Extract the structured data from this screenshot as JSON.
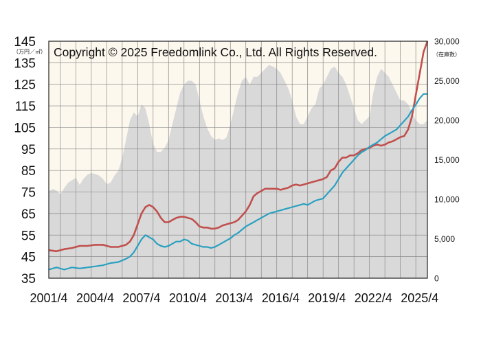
{
  "chart_data": {
    "type": "line",
    "copyright": "Copyright © 2025 Freedomlink Co., Ltd. All Rights Reserved.",
    "y_left_unit": "（万円／㎡）",
    "y_right_unit": "（在庫数）",
    "y_left_ticks": [
      "145",
      "135",
      "125",
      "115",
      "105",
      "95",
      "85",
      "75",
      "65",
      "55",
      "45",
      "35"
    ],
    "y_right_ticks": [
      "30,000",
      "25,000",
      "20,000",
      "15,000",
      "10,000",
      "5,000",
      "0"
    ],
    "x_ticks": [
      "2001/4",
      "2004/4",
      "2007/4",
      "2010/4",
      "2013/4",
      "2016/4",
      "2019/4",
      "2022/4",
      "2025/4"
    ],
    "ylim_left": [
      35,
      145
    ],
    "ylim_right": [
      0,
      30000
    ],
    "xlim": [
      2001.25,
      2025.75
    ],
    "grid": true,
    "colors": {
      "inventory": "#d9d9d9",
      "red_series": "#c0504d",
      "teal_series": "#2aa0c0",
      "plot_bg": "#fdf8ee"
    },
    "series": [
      {
        "key": "inventory",
        "axis": "right",
        "style": "area",
        "x": [
          2001.25,
          2001.5,
          2001.75,
          2002.0,
          2002.25,
          2002.5,
          2002.75,
          2003.0,
          2003.25,
          2003.5,
          2003.75,
          2004.0,
          2004.25,
          2004.5,
          2004.75,
          2005.0,
          2005.25,
          2005.5,
          2005.75,
          2006.0,
          2006.25,
          2006.5,
          2006.75,
          2007.0,
          2007.25,
          2007.5,
          2007.75,
          2008.0,
          2008.25,
          2008.5,
          2008.75,
          2009.0,
          2009.25,
          2009.5,
          2009.75,
          2010.0,
          2010.25,
          2010.5,
          2010.75,
          2011.0,
          2011.25,
          2011.5,
          2011.75,
          2012.0,
          2012.25,
          2012.5,
          2012.75,
          2013.0,
          2013.25,
          2013.5,
          2013.75,
          2014.0,
          2014.25,
          2014.5,
          2014.75,
          2015.0,
          2015.25,
          2015.5,
          2015.75,
          2016.0,
          2016.25,
          2016.5,
          2016.75,
          2017.0,
          2017.25,
          2017.5,
          2017.75,
          2018.0,
          2018.25,
          2018.5,
          2018.75,
          2019.0,
          2019.25,
          2019.5,
          2019.75,
          2020.0,
          2020.25,
          2020.5,
          2020.75,
          2021.0,
          2021.25,
          2021.5,
          2021.75,
          2022.0,
          2022.25,
          2022.5,
          2022.75,
          2023.0,
          2023.25,
          2023.5,
          2023.75,
          2024.0,
          2024.25,
          2024.5,
          2024.75,
          2025.0,
          2025.25,
          2025.5,
          2025.75
        ],
        "values": [
          11000,
          11300,
          11100,
          10600,
          11400,
          12100,
          12400,
          12700,
          11800,
          12600,
          13100,
          13300,
          13200,
          13000,
          12600,
          11900,
          12100,
          13000,
          13600,
          15200,
          17500,
          20000,
          21000,
          20500,
          22000,
          21500,
          19500,
          17000,
          16000,
          16000,
          16500,
          17500,
          19500,
          21500,
          23500,
          24500,
          25000,
          25000,
          24500,
          22500,
          20500,
          19000,
          18000,
          17500,
          17700,
          17500,
          17800,
          19500,
          21500,
          23500,
          25000,
          25500,
          24500,
          25500,
          25500,
          26000,
          26500,
          27000,
          26800,
          26500,
          26000,
          25000,
          24000,
          22500,
          20500,
          19500,
          19500,
          20500,
          21500,
          22000,
          24000,
          24500,
          25500,
          26500,
          26800,
          26000,
          25500,
          24500,
          23000,
          21500,
          20000,
          19500,
          20000,
          20500,
          23500,
          25500,
          26500,
          26000,
          25500,
          24500,
          23500,
          22500,
          22500,
          22000,
          21000,
          20000,
          19500,
          19500,
          20000
        ]
      },
      {
        "key": "red_line",
        "axis": "left",
        "style": "line",
        "x": [
          2001.25,
          2001.75,
          2002.25,
          2002.75,
          2003.25,
          2003.75,
          2004.25,
          2004.75,
          2005.25,
          2005.75,
          2006.25,
          2006.5,
          2006.75,
          2007.0,
          2007.25,
          2007.5,
          2007.75,
          2008.0,
          2008.25,
          2008.5,
          2008.75,
          2009.0,
          2009.25,
          2009.5,
          2009.75,
          2010.0,
          2010.25,
          2010.5,
          2010.75,
          2011.0,
          2011.25,
          2011.5,
          2011.75,
          2012.0,
          2012.25,
          2012.5,
          2012.75,
          2013.0,
          2013.25,
          2013.5,
          2013.75,
          2014.0,
          2014.25,
          2014.5,
          2014.75,
          2015.0,
          2015.25,
          2015.5,
          2015.75,
          2016.0,
          2016.25,
          2016.5,
          2016.75,
          2017.0,
          2017.25,
          2017.5,
          2017.75,
          2018.0,
          2018.25,
          2018.5,
          2018.75,
          2019.0,
          2019.25,
          2019.5,
          2019.75,
          2020.0,
          2020.25,
          2020.5,
          2020.75,
          2021.0,
          2021.25,
          2021.5,
          2021.75,
          2022.0,
          2022.25,
          2022.5,
          2022.75,
          2023.0,
          2023.25,
          2023.5,
          2023.75,
          2024.0,
          2024.25,
          2024.5,
          2024.75,
          2025.0,
          2025.25,
          2025.5,
          2025.75
        ],
        "values": [
          48,
          47.5,
          48.5,
          49,
          50,
          50,
          50.5,
          50.5,
          49.5,
          49.5,
          50.5,
          52,
          55,
          60,
          65,
          68,
          69,
          68,
          66,
          63,
          61,
          61,
          62,
          63,
          63.5,
          63.5,
          63,
          62.5,
          61,
          59,
          58.5,
          58.5,
          58,
          58,
          58.5,
          59.5,
          60,
          60.5,
          61,
          62,
          64,
          66,
          69,
          73,
          74.5,
          75.5,
          76.5,
          76.5,
          76.5,
          76.5,
          76,
          76.5,
          77,
          78,
          78.5,
          78,
          78.5,
          79,
          79.5,
          80,
          80.5,
          81,
          82,
          85,
          86,
          89,
          91,
          91,
          92,
          92,
          93,
          94.5,
          95,
          95.5,
          96.5,
          97,
          96.5,
          97,
          98,
          98.5,
          99.5,
          100.5,
          101,
          104,
          110,
          120,
          130,
          140,
          145
        ]
      },
      {
        "key": "teal_line",
        "axis": "left",
        "style": "line",
        "x": [
          2001.25,
          2001.75,
          2002.25,
          2002.75,
          2003.25,
          2003.75,
          2004.25,
          2004.75,
          2005.25,
          2005.75,
          2006.25,
          2006.5,
          2006.75,
          2007.0,
          2007.25,
          2007.5,
          2007.75,
          2008.0,
          2008.25,
          2008.5,
          2008.75,
          2009.0,
          2009.25,
          2009.5,
          2009.75,
          2010.0,
          2010.25,
          2010.5,
          2010.75,
          2011.0,
          2011.25,
          2011.5,
          2011.75,
          2012.0,
          2012.25,
          2012.5,
          2012.75,
          2013.0,
          2013.25,
          2013.5,
          2013.75,
          2014.0,
          2014.25,
          2014.5,
          2014.75,
          2015.0,
          2015.25,
          2015.5,
          2015.75,
          2016.0,
          2016.25,
          2016.5,
          2016.75,
          2017.0,
          2017.25,
          2017.5,
          2017.75,
          2018.0,
          2018.25,
          2018.5,
          2018.75,
          2019.0,
          2019.25,
          2019.5,
          2019.75,
          2020.0,
          2020.25,
          2020.5,
          2020.75,
          2021.0,
          2021.25,
          2021.5,
          2021.75,
          2022.0,
          2022.25,
          2022.5,
          2022.75,
          2023.0,
          2023.25,
          2023.5,
          2023.75,
          2024.0,
          2024.25,
          2024.5,
          2024.75,
          2025.0,
          2025.25,
          2025.5,
          2025.75
        ],
        "values": [
          39,
          40,
          39,
          40,
          39.5,
          40,
          40.5,
          41,
          42,
          42.5,
          44,
          45,
          47,
          50,
          53,
          55,
          54,
          53,
          51,
          50,
          49.5,
          50,
          51,
          52,
          52,
          53,
          52.5,
          51,
          50.5,
          50,
          49.5,
          49.5,
          49,
          49.5,
          50.5,
          51.5,
          52.5,
          53.5,
          55,
          56,
          57.5,
          59,
          60,
          61,
          62,
          63,
          64,
          65,
          65.5,
          66,
          66.5,
          67,
          67.5,
          68,
          68.5,
          69,
          69.5,
          69,
          70,
          71,
          71.5,
          72,
          74,
          76,
          78,
          81,
          84,
          86,
          88,
          90,
          92,
          93.5,
          94.5,
          96,
          97,
          98,
          99.5,
          101,
          102,
          103,
          104,
          106,
          108,
          110,
          113,
          115.5,
          118.5,
          120.5,
          120.5
        ]
      }
    ]
  }
}
